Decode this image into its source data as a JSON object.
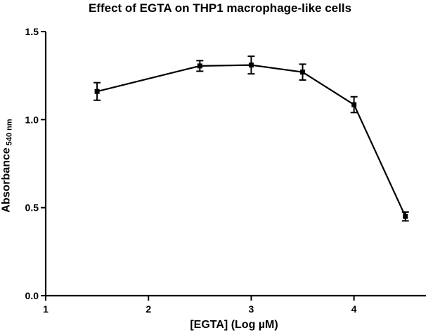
{
  "chart_data": {
    "type": "line",
    "title": "Effect of EGTA on THP1 macrophage-like cells",
    "xlabel": "[EGTA] (Log µM)",
    "ylabel": "Absorbance",
    "ylabel_subscript": "540 nm",
    "xlim": [
      1,
      4.7
    ],
    "ylim": [
      0,
      1.5
    ],
    "x_ticks": [
      1,
      2,
      3,
      4
    ],
    "y_ticks": [
      0.0,
      0.5,
      1.0,
      1.5
    ],
    "x_tick_labels": [
      "1",
      "2",
      "3",
      "4"
    ],
    "y_tick_labels": [
      "0.0",
      "0.5",
      "1.0",
      "1.5"
    ],
    "grid": false,
    "series": [
      {
        "x": [
          1.5,
          2.5,
          3.0,
          3.5,
          4.0,
          4.5
        ],
        "values": [
          1.16,
          1.305,
          1.31,
          1.27,
          1.085,
          0.45
        ],
        "error": [
          0.05,
          0.03,
          0.05,
          0.045,
          0.045,
          0.025
        ]
      }
    ]
  }
}
